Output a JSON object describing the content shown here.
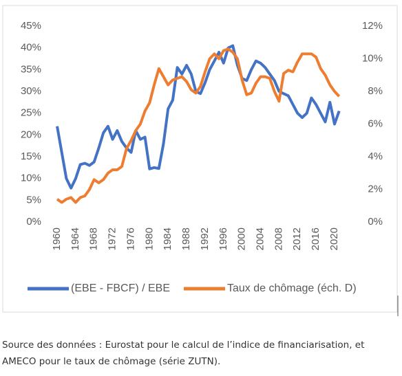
{
  "chart_data": {
    "type": "line",
    "x": [
      1960,
      1961,
      1962,
      1963,
      1964,
      1965,
      1966,
      1967,
      1968,
      1969,
      1970,
      1971,
      1972,
      1973,
      1974,
      1975,
      1976,
      1977,
      1978,
      1979,
      1980,
      1981,
      1982,
      1983,
      1984,
      1985,
      1986,
      1987,
      1988,
      1989,
      1990,
      1991,
      1992,
      1993,
      1994,
      1995,
      1996,
      1997,
      1998,
      1999,
      2000,
      2001,
      2002,
      2003,
      2004,
      2005,
      2006,
      2007,
      2008,
      2009,
      2010,
      2011,
      2012,
      2013,
      2014,
      2015,
      2016,
      2017,
      2018,
      2019,
      2020,
      2021
    ],
    "xlim": [
      1959,
      2022
    ],
    "xticks": [
      1960,
      1964,
      1968,
      1972,
      1976,
      1980,
      1984,
      1988,
      1992,
      1996,
      2000,
      2004,
      2008,
      2012,
      2016,
      2020
    ],
    "ylim": [
      0,
      45
    ],
    "yticks": [
      {
        "value": 0,
        "label": "0%"
      },
      {
        "value": 5,
        "label": "5%"
      },
      {
        "value": 10,
        "label": "10%"
      },
      {
        "value": 15,
        "label": "15%"
      },
      {
        "value": 20,
        "label": "20%"
      },
      {
        "value": 25,
        "label": "25%"
      },
      {
        "value": 30,
        "label": "30%"
      },
      {
        "value": 35,
        "label": "35%"
      },
      {
        "value": 40,
        "label": "40%"
      },
      {
        "value": 45,
        "label": "45%"
      }
    ],
    "y2lim": [
      0,
      12
    ],
    "y2ticks": [
      {
        "value": 0,
        "label": "0%"
      },
      {
        "value": 2,
        "label": "2%"
      },
      {
        "value": 4,
        "label": "4%"
      },
      {
        "value": 6,
        "label": "6%"
      },
      {
        "value": 8,
        "label": "8%"
      },
      {
        "value": 10,
        "label": "10%"
      },
      {
        "value": 12,
        "label": "12%"
      }
    ],
    "series": [
      {
        "name": "(EBE - FBCF) / EBE",
        "color": "#4472c4",
        "axis": "y",
        "values": [
          22,
          16,
          10,
          7.8,
          10,
          13.2,
          13.5,
          13,
          13.8,
          17,
          20.5,
          22,
          19,
          21,
          18.5,
          17,
          16,
          21,
          19,
          19.5,
          12.2,
          12.5,
          12.3,
          18,
          26,
          28,
          35.5,
          34,
          36,
          34,
          30,
          29.5,
          32,
          35,
          37,
          39,
          36.5,
          40,
          40.5,
          36,
          33,
          32.5,
          35,
          37,
          36.5,
          35.5,
          34,
          32.5,
          30,
          29.5,
          29,
          27,
          25,
          24,
          25,
          28.5,
          27,
          25,
          23,
          27.5,
          22.5,
          25.5
        ]
      },
      {
        "name": "Taux de chômage (éch. D)",
        "color": "#ed7d31",
        "axis": "y2",
        "values": [
          1.4,
          1.2,
          1.4,
          1.5,
          1.2,
          1.5,
          1.6,
          2.0,
          2.6,
          2.4,
          2.6,
          3.0,
          3.2,
          3.2,
          3.4,
          4.5,
          5.0,
          5.6,
          6.0,
          6.8,
          7.3,
          8.4,
          9.4,
          8.9,
          8.4,
          8.7,
          8.8,
          8.9,
          8.6,
          8.1,
          7.9,
          8.3,
          9.2,
          10.0,
          10.3,
          10.0,
          10.5,
          10.6,
          10.4,
          10.0,
          8.7,
          7.8,
          7.9,
          8.5,
          8.9,
          8.9,
          8.8,
          8.0,
          7.4,
          9.1,
          9.3,
          9.2,
          9.8,
          10.3,
          10.3,
          10.3,
          10.1,
          9.4,
          9.0,
          8.4,
          8.0,
          7.7
        ]
      }
    ]
  },
  "source": [
    "Source des données : Eurostat pour le calcul de l’indice de financiarisation, et",
    "AMECO pour le taux de chômage (série ZUTN)."
  ]
}
